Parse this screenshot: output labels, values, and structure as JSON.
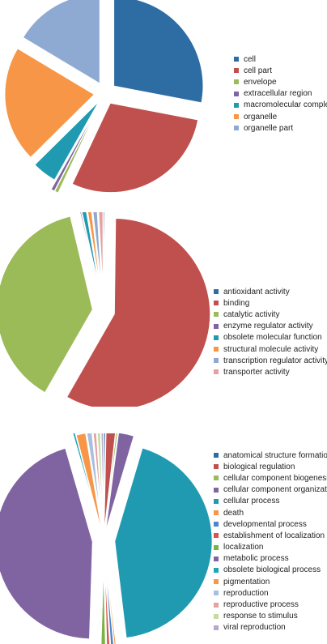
{
  "chart_data": [
    {
      "type": "pie",
      "exploded": true,
      "legend_position": "right",
      "slices": [
        {
          "label": "cell",
          "value": 28.0,
          "color": "#2e6da4"
        },
        {
          "label": "cell part",
          "value": 29.0,
          "color": "#c0504d"
        },
        {
          "label": "envelope",
          "value": 0.6,
          "color": "#9bbb59"
        },
        {
          "label": "extracellular region",
          "value": 0.6,
          "color": "#8064a2"
        },
        {
          "label": "macromolecular complex",
          "value": 4.4,
          "color": "#1f9ab0"
        },
        {
          "label": "organelle",
          "value": 21.0,
          "color": "#f79646"
        },
        {
          "label": "organelle part",
          "value": 16.4,
          "color": "#8eaad2"
        }
      ]
    },
    {
      "type": "pie",
      "exploded": true,
      "legend_position": "right",
      "slices": [
        {
          "label": "antioxidant activity",
          "value": 0.2,
          "color": "#2e6da4"
        },
        {
          "label": "binding",
          "value": 57.5,
          "color": "#c0504d"
        },
        {
          "label": "catalytic activity",
          "value": 37.6,
          "color": "#9bbb59"
        },
        {
          "label": "enzyme regulator activity",
          "value": 0.2,
          "color": "#8064a2"
        },
        {
          "label": "obsolete molecular function",
          "value": 0.9,
          "color": "#1f9ab0"
        },
        {
          "label": "structural molecule activity",
          "value": 0.8,
          "color": "#f79646"
        },
        {
          "label": "transcription regulator activity",
          "value": 0.9,
          "color": "#8eaad2"
        },
        {
          "label": "transporter activity",
          "value": 0.9,
          "color": "#e6a0a0"
        }
      ]
    },
    {
      "type": "pie",
      "exploded": true,
      "legend_position": "right",
      "slices": [
        {
          "label": "anatomical structure formation",
          "value": 0.3,
          "color": "#2e6da4"
        },
        {
          "label": "biological regulation",
          "value": 1.5,
          "color": "#c0504d"
        },
        {
          "label": "cellular component biogenesis",
          "value": 0.3,
          "color": "#9bbb59"
        },
        {
          "label": "cellular component organization",
          "value": 2.5,
          "color": "#8064a2"
        },
        {
          "label": "cellular process",
          "value": 43.5,
          "color": "#1f9ab0"
        },
        {
          "label": "death",
          "value": 0.3,
          "color": "#f79646"
        },
        {
          "label": "developmental process",
          "value": 0.6,
          "color": "#4a86c8"
        },
        {
          "label": "establishment of localization",
          "value": 0.6,
          "color": "#d9534f"
        },
        {
          "label": "localization",
          "value": 0.9,
          "color": "#77b347"
        },
        {
          "label": "metabolic process",
          "value": 45.0,
          "color": "#8064a2"
        },
        {
          "label": "obsolete biological process",
          "value": 0.4,
          "color": "#1fa5b8"
        },
        {
          "label": "pigmentation",
          "value": 1.5,
          "color": "#f79646"
        },
        {
          "label": "reproduction",
          "value": 1.0,
          "color": "#a8bde0"
        },
        {
          "label": "reproductive process",
          "value": 0.6,
          "color": "#e6a0a0"
        },
        {
          "label": "response to stimulus",
          "value": 0.6,
          "color": "#c4dca4"
        },
        {
          "label": "viral reproduction",
          "value": 0.4,
          "color": "#b7a8cc"
        }
      ]
    }
  ]
}
